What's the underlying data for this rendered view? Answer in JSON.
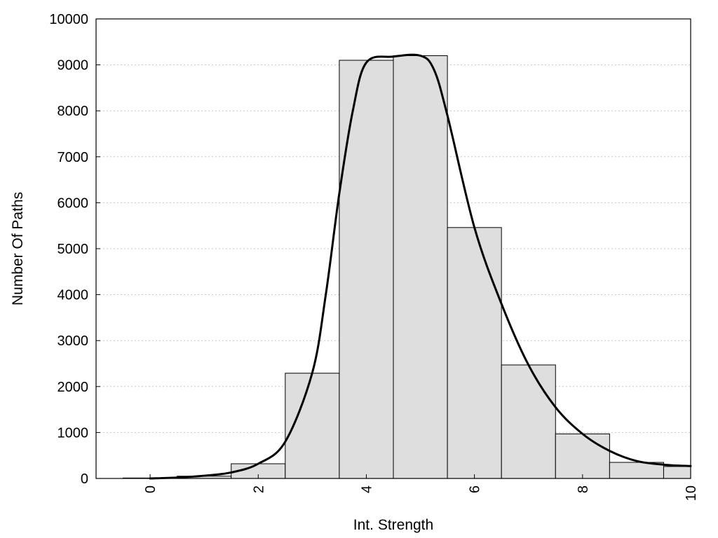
{
  "chart_data": {
    "type": "bar",
    "title": "",
    "xlabel": "Int. Strength",
    "ylabel": "Number Of Paths",
    "xlim": [
      -1,
      10
    ],
    "ylim": [
      0,
      10000
    ],
    "xticks": [
      0,
      2,
      4,
      6,
      8,
      10
    ],
    "yticks": [
      0,
      1000,
      2000,
      3000,
      4000,
      5000,
      6000,
      7000,
      8000,
      9000,
      10000
    ],
    "grid": "horizontal dotted",
    "legend": "none",
    "bin_width": 1,
    "bars": [
      {
        "x": 0,
        "value": 10
      },
      {
        "x": 1,
        "value": 50
      },
      {
        "x": 2,
        "value": 320
      },
      {
        "x": 3,
        "value": 2290
      },
      {
        "x": 4,
        "value": 9100
      },
      {
        "x": 5,
        "value": 9200
      },
      {
        "x": 6,
        "value": 5460
      },
      {
        "x": 7,
        "value": 2470
      },
      {
        "x": 8,
        "value": 970
      },
      {
        "x": 9,
        "value": 350
      },
      {
        "x": 10,
        "value": 260
      }
    ],
    "fit_curve": {
      "x": [
        0,
        0.5,
        1,
        1.5,
        2,
        2.5,
        3,
        3.25,
        3.5,
        3.75,
        4,
        4.5,
        5,
        5.25,
        5.5,
        6,
        6.5,
        7,
        7.5,
        8,
        8.5,
        9,
        9.5,
        10
      ],
      "y": [
        0,
        20,
        60,
        130,
        320,
        800,
        2300,
        4000,
        6200,
        8000,
        9050,
        9180,
        9200,
        8900,
        7900,
        5460,
        3800,
        2470,
        1550,
        970,
        600,
        380,
        300,
        270
      ]
    },
    "colors": {
      "bar_fill": "#dedede",
      "bar_edge": "#000000",
      "curve": "#000000",
      "grid": "#c8c8c8"
    }
  }
}
